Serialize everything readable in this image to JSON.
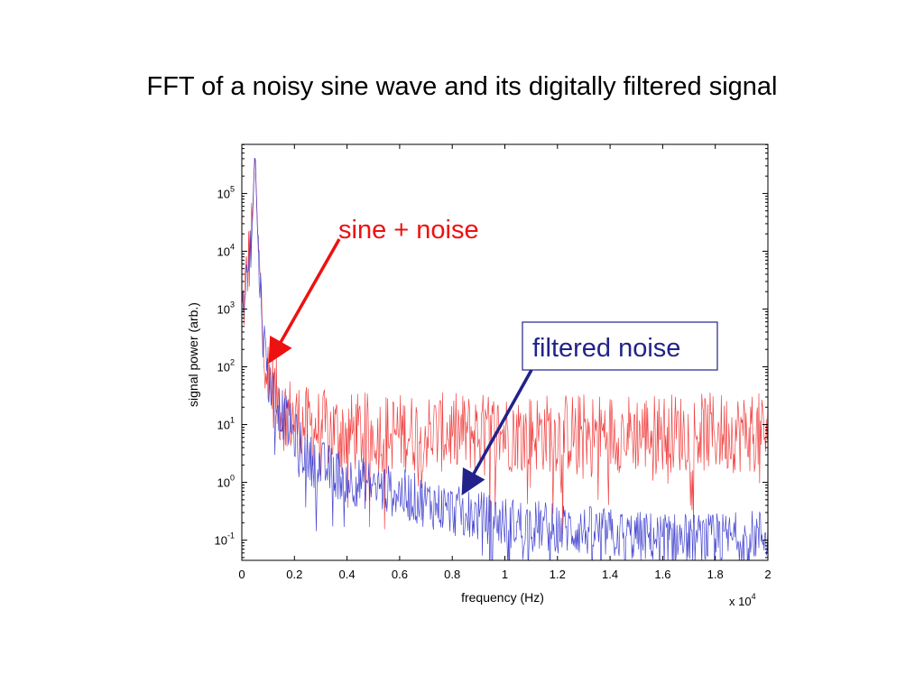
{
  "slide": {
    "title": "FFT of a noisy sine wave and its digitally filtered signal"
  },
  "chart_data": {
    "type": "line",
    "title": "",
    "xlabel": "frequency (Hz)",
    "ylabel": "signal power (arb.)",
    "x_multiplier_base": "x 10",
    "x_multiplier_exp": "4",
    "xlim": [
      0,
      2
    ],
    "ylim_log10": [
      -1.35,
      5.85
    ],
    "y_scale": "log",
    "x_ticks": [
      "0",
      "0.2",
      "0.4",
      "0.6",
      "0.8",
      "1",
      "1.2",
      "1.4",
      "1.6",
      "1.8",
      "2"
    ],
    "y_ticks": [
      {
        "base": "10",
        "exp": "-1",
        "value": -1
      },
      {
        "base": "10",
        "exp": "0",
        "value": 0
      },
      {
        "base": "10",
        "exp": "1",
        "value": 1
      },
      {
        "base": "10",
        "exp": "2",
        "value": 2
      },
      {
        "base": "10",
        "exp": "3",
        "value": 3
      },
      {
        "base": "10",
        "exp": "4",
        "value": 4
      },
      {
        "base": "10",
        "exp": "5",
        "value": 5
      }
    ],
    "series": [
      {
        "color": "#ee2222",
        "peak": {
          "x": 0.05,
          "log10_value": 5.8
        },
        "envelope_log10": [
          [
            0.0,
            3.0
          ],
          [
            0.04,
            4.5
          ],
          [
            0.05,
            5.8
          ],
          [
            0.06,
            4.3
          ],
          [
            0.08,
            2.8
          ],
          [
            0.1,
            2.0
          ],
          [
            0.15,
            1.4
          ],
          [
            0.25,
            1.1
          ],
          [
            0.4,
            1.0
          ],
          [
            1.0,
            1.0
          ],
          [
            2.0,
            1.0
          ]
        ],
        "noise_amplitude_log10": 0.7
      },
      {
        "color": "#3333cc",
        "peak": {
          "x": 0.05,
          "log10_value": 5.8
        },
        "envelope_log10": [
          [
            0.0,
            3.0
          ],
          [
            0.04,
            4.5
          ],
          [
            0.05,
            5.8
          ],
          [
            0.06,
            4.3
          ],
          [
            0.08,
            2.7
          ],
          [
            0.1,
            1.9
          ],
          [
            0.15,
            1.3
          ],
          [
            0.25,
            0.5
          ],
          [
            0.4,
            0.15
          ],
          [
            0.6,
            -0.1
          ],
          [
            0.8,
            -0.4
          ],
          [
            1.0,
            -0.6
          ],
          [
            1.5,
            -0.85
          ],
          [
            1.8,
            -0.9
          ],
          [
            2.0,
            -0.8
          ]
        ],
        "noise_amplitude_log10": 0.45
      }
    ],
    "annotations": [
      {
        "text": "sine + noise",
        "color": "#ee1111",
        "points_to": {
          "x": 0.1,
          "log10_value": 2.0
        }
      },
      {
        "text": "filtered noise",
        "color": "#22228a",
        "boxed": true,
        "points_to": {
          "x": 0.84,
          "log10_value": -0.15
        }
      }
    ],
    "grid": false
  }
}
